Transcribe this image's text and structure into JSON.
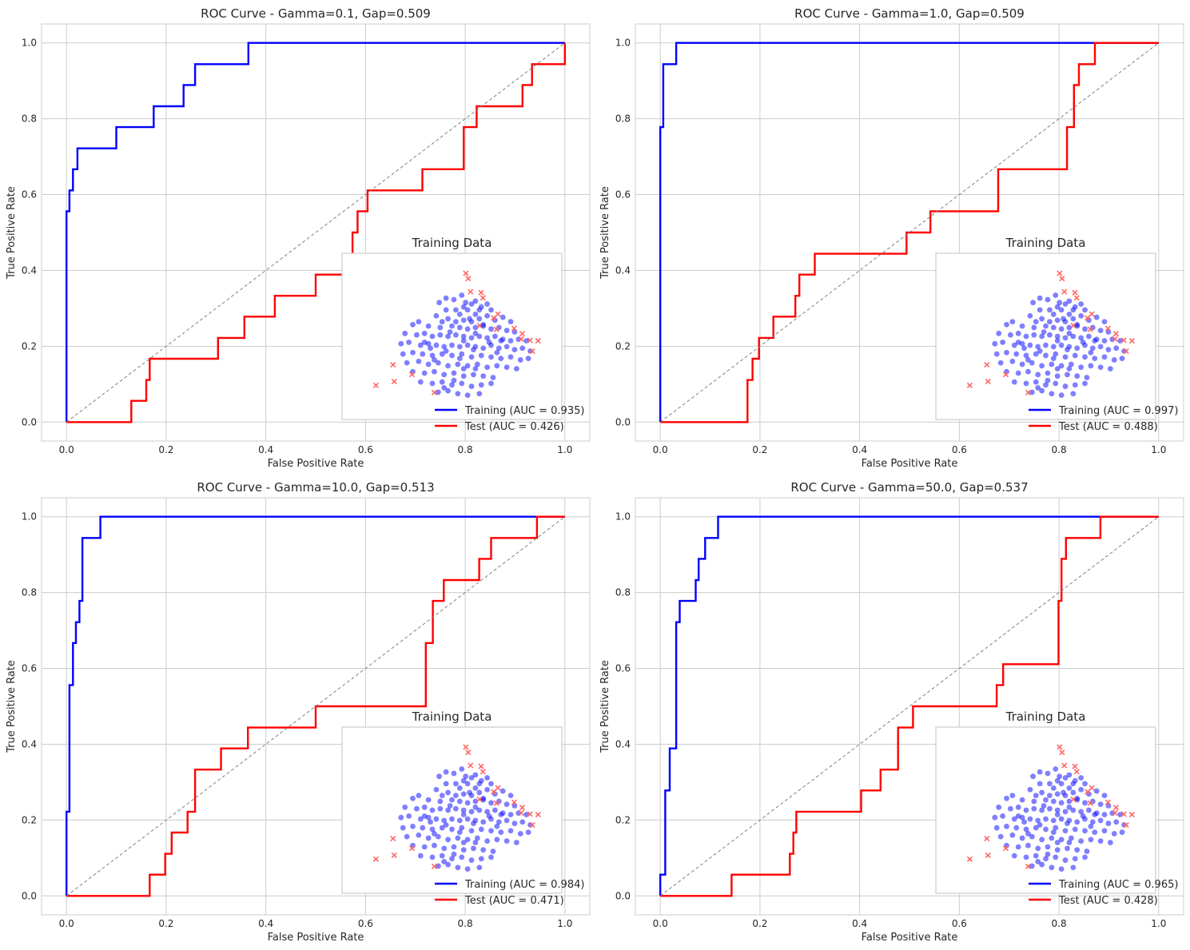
{
  "colors": {
    "training": "#0000ff",
    "test": "#ff0000",
    "diagonal": "#808080",
    "grid": "#cccccc",
    "inset_normal": "#0000ff",
    "inset_outlier": "#ff6666"
  },
  "chart_data": [
    {
      "type": "line",
      "title": "ROC Curve - Gamma=0.1, Gap=0.509",
      "xlabel": "False Positive Rate",
      "ylabel": "True Positive Rate",
      "xlim": [
        -0.05,
        1.05
      ],
      "ylim": [
        -0.05,
        1.05
      ],
      "xticks": [
        "0.0",
        "0.2",
        "0.4",
        "0.6",
        "0.8",
        "1.0"
      ],
      "yticks": [
        "0.0",
        "0.2",
        "0.4",
        "0.6",
        "0.8",
        "1.0"
      ],
      "grid": true,
      "legend_position": "lower-right",
      "series": [
        {
          "name": "Training (AUC = 0.935)",
          "color": "#0000ff",
          "x": [
            0,
            0,
            0.006,
            0.006,
            0.013,
            0.013,
            0.022,
            0.022,
            0.1,
            0.1,
            0.175,
            0.175,
            0.235,
            0.235,
            0.258,
            0.258,
            0.365,
            0.365,
            1.0
          ],
          "y": [
            0,
            0.556,
            0.556,
            0.611,
            0.611,
            0.667,
            0.667,
            0.722,
            0.722,
            0.778,
            0.778,
            0.833,
            0.833,
            0.889,
            0.889,
            0.944,
            0.944,
            1.0,
            1.0
          ]
        },
        {
          "name": "Test (AUC = 0.426)",
          "color": "#ff0000",
          "x": [
            0,
            0.13,
            0.13,
            0.16,
            0.16,
            0.167,
            0.167,
            0.304,
            0.304,
            0.357,
            0.357,
            0.418,
            0.418,
            0.5,
            0.5,
            0.574,
            0.574,
            0.584,
            0.584,
            0.604,
            0.604,
            0.714,
            0.714,
            0.797,
            0.797,
            0.808,
            0.808,
            0.823,
            0.823,
            0.915,
            0.915,
            0.934,
            0.934,
            1.0,
            1.0
          ],
          "y": [
            0,
            0,
            0.056,
            0.056,
            0.111,
            0.111,
            0.167,
            0.167,
            0.222,
            0.222,
            0.278,
            0.278,
            0.333,
            0.333,
            0.389,
            0.389,
            0.5,
            0.5,
            0.556,
            0.556,
            0.611,
            0.611,
            0.667,
            0.667,
            0.778,
            0.778,
            0.778,
            0.778,
            0.833,
            0.833,
            0.889,
            0.889,
            0.944,
            0.944,
            1.0
          ]
        },
        {
          "x": [
            0,
            1
          ],
          "y": [
            0,
            1
          ],
          "color": "#808080",
          "dashed": true
        }
      ],
      "inset_title": "Training Data"
    },
    {
      "type": "line",
      "title": "ROC Curve - Gamma=1.0, Gap=0.509",
      "xlabel": "False Positive Rate",
      "ylabel": "True Positive Rate",
      "xlim": [
        -0.05,
        1.05
      ],
      "ylim": [
        -0.05,
        1.05
      ],
      "xticks": [
        "0.0",
        "0.2",
        "0.4",
        "0.6",
        "0.8",
        "1.0"
      ],
      "yticks": [
        "0.0",
        "0.2",
        "0.4",
        "0.6",
        "0.8",
        "1.0"
      ],
      "grid": true,
      "legend_position": "lower-right",
      "series": [
        {
          "name": "Training (AUC = 0.997)",
          "color": "#0000ff",
          "x": [
            0,
            0,
            0.006,
            0.006,
            0.032,
            0.032,
            1.0
          ],
          "y": [
            0,
            0.778,
            0.778,
            0.944,
            0.944,
            1.0,
            1.0
          ]
        },
        {
          "name": "Test (AUC = 0.488)",
          "color": "#ff0000",
          "x": [
            0,
            0.175,
            0.175,
            0.185,
            0.185,
            0.198,
            0.198,
            0.227,
            0.227,
            0.271,
            0.271,
            0.279,
            0.279,
            0.31,
            0.31,
            0.494,
            0.494,
            0.542,
            0.542,
            0.678,
            0.678,
            0.816,
            0.816,
            0.83,
            0.83,
            0.84,
            0.84,
            0.872,
            0.872,
            1.0
          ],
          "y": [
            0,
            0,
            0.111,
            0.111,
            0.167,
            0.167,
            0.222,
            0.222,
            0.278,
            0.278,
            0.333,
            0.333,
            0.389,
            0.389,
            0.444,
            0.444,
            0.5,
            0.5,
            0.556,
            0.556,
            0.667,
            0.667,
            0.778,
            0.778,
            0.889,
            0.889,
            0.944,
            0.944,
            1.0,
            1.0
          ]
        },
        {
          "x": [
            0,
            1
          ],
          "y": [
            0,
            1
          ],
          "color": "#808080",
          "dashed": true
        }
      ],
      "inset_title": "Training Data"
    },
    {
      "type": "line",
      "title": "ROC Curve - Gamma=10.0, Gap=0.513",
      "xlabel": "False Positive Rate",
      "ylabel": "True Positive Rate",
      "xlim": [
        -0.05,
        1.05
      ],
      "ylim": [
        -0.05,
        1.05
      ],
      "xticks": [
        "0.0",
        "0.2",
        "0.4",
        "0.6",
        "0.8",
        "1.0"
      ],
      "yticks": [
        "0.0",
        "0.2",
        "0.4",
        "0.6",
        "0.8",
        "1.0"
      ],
      "grid": true,
      "legend_position": "lower-right",
      "series": [
        {
          "name": "Training (AUC = 0.984)",
          "color": "#0000ff",
          "x": [
            0,
            0,
            0.006,
            0.006,
            0.013,
            0.013,
            0.019,
            0.019,
            0.026,
            0.026,
            0.032,
            0.032,
            0.068,
            0.068,
            1.0
          ],
          "y": [
            0,
            0.222,
            0.222,
            0.556,
            0.556,
            0.667,
            0.667,
            0.722,
            0.722,
            0.778,
            0.778,
            0.944,
            0.944,
            1.0,
            1.0
          ]
        },
        {
          "name": "Test (AUC = 0.471)",
          "color": "#ff0000",
          "x": [
            0,
            0.167,
            0.167,
            0.198,
            0.198,
            0.211,
            0.211,
            0.243,
            0.243,
            0.258,
            0.258,
            0.31,
            0.31,
            0.364,
            0.364,
            0.5,
            0.5,
            0.721,
            0.721,
            0.735,
            0.735,
            0.757,
            0.757,
            0.828,
            0.828,
            0.852,
            0.852,
            0.944,
            0.944,
            1.0
          ],
          "y": [
            0,
            0,
            0.056,
            0.056,
            0.111,
            0.111,
            0.167,
            0.167,
            0.222,
            0.222,
            0.333,
            0.333,
            0.389,
            0.389,
            0.444,
            0.444,
            0.5,
            0.5,
            0.667,
            0.667,
            0.778,
            0.778,
            0.833,
            0.833,
            0.889,
            0.889,
            0.944,
            0.944,
            1.0,
            1.0
          ]
        },
        {
          "x": [
            0,
            1
          ],
          "y": [
            0,
            1
          ],
          "color": "#808080",
          "dashed": true
        }
      ],
      "inset_title": "Training Data"
    },
    {
      "type": "line",
      "title": "ROC Curve - Gamma=50.0, Gap=0.537",
      "xlabel": "False Positive Rate",
      "ylabel": "True Positive Rate",
      "xlim": [
        -0.05,
        1.05
      ],
      "ylim": [
        -0.05,
        1.05
      ],
      "xticks": [
        "0.0",
        "0.2",
        "0.4",
        "0.6",
        "0.8",
        "1.0"
      ],
      "yticks": [
        "0.0",
        "0.2",
        "0.4",
        "0.6",
        "0.8",
        "1.0"
      ],
      "grid": true,
      "legend_position": "lower-right",
      "series": [
        {
          "name": "Training (AUC = 0.965)",
          "color": "#0000ff",
          "x": [
            0,
            0,
            0.01,
            0.01,
            0.019,
            0.019,
            0.032,
            0.032,
            0.039,
            0.039,
            0.071,
            0.071,
            0.077,
            0.077,
            0.09,
            0.09,
            0.116,
            0.116,
            1.0
          ],
          "y": [
            0,
            0.056,
            0.056,
            0.278,
            0.278,
            0.389,
            0.389,
            0.722,
            0.722,
            0.778,
            0.778,
            0.833,
            0.833,
            0.889,
            0.889,
            0.944,
            0.944,
            1.0,
            1.0
          ]
        },
        {
          "name": "Test (AUC = 0.428)",
          "color": "#ff0000",
          "x": [
            0,
            0.143,
            0.143,
            0.26,
            0.26,
            0.267,
            0.267,
            0.273,
            0.273,
            0.403,
            0.403,
            0.442,
            0.442,
            0.477,
            0.477,
            0.507,
            0.507,
            0.675,
            0.675,
            0.688,
            0.688,
            0.799,
            0.799,
            0.805,
            0.805,
            0.814,
            0.814,
            0.883,
            0.883,
            1.0
          ],
          "y": [
            0,
            0,
            0.056,
            0.056,
            0.111,
            0.111,
            0.167,
            0.167,
            0.222,
            0.222,
            0.278,
            0.278,
            0.333,
            0.333,
            0.444,
            0.444,
            0.5,
            0.5,
            0.556,
            0.556,
            0.611,
            0.611,
            0.778,
            0.778,
            0.889,
            0.889,
            0.944,
            0.944,
            1.0,
            1.0
          ]
        },
        {
          "x": [
            0,
            1
          ],
          "y": [
            0,
            1
          ],
          "color": "#808080",
          "dashed": true
        }
      ],
      "inset_title": "Training Data"
    }
  ],
  "inset_scatter": {
    "outliers": [
      [
        0.571,
        0.929
      ],
      [
        0.583,
        0.893
      ],
      [
        0.595,
        0.804
      ],
      [
        0.649,
        0.798
      ],
      [
        0.658,
        0.762
      ],
      [
        0.735,
        0.652
      ],
      [
        0.713,
        0.625
      ],
      [
        0.641,
        0.574
      ],
      [
        0.818,
        0.554
      ],
      [
        0.727,
        0.548
      ],
      [
        0.859,
        0.518
      ],
      [
        0.854,
        0.482
      ],
      [
        0.899,
        0.473
      ],
      [
        0.94,
        0.47
      ],
      [
        0.911,
        0.399
      ],
      [
        0.199,
        0.307
      ],
      [
        0.296,
        0.241
      ],
      [
        0.205,
        0.193
      ],
      [
        0.112,
        0.167
      ],
      [
        0.41,
        0.118
      ]
    ],
    "normal": [
      [
        0.435,
        0.73
      ],
      [
        0.51,
        0.75
      ],
      [
        0.56,
        0.7
      ],
      [
        0.6,
        0.72
      ],
      [
        0.65,
        0.7
      ],
      [
        0.47,
        0.68
      ],
      [
        0.54,
        0.65
      ],
      [
        0.58,
        0.68
      ],
      [
        0.62,
        0.65
      ],
      [
        0.7,
        0.68
      ],
      [
        0.42,
        0.64
      ],
      [
        0.48,
        0.62
      ],
      [
        0.52,
        0.6
      ],
      [
        0.56,
        0.61
      ],
      [
        0.6,
        0.6
      ],
      [
        0.64,
        0.62
      ],
      [
        0.68,
        0.64
      ],
      [
        0.72,
        0.61
      ],
      [
        0.76,
        0.63
      ],
      [
        0.8,
        0.6
      ],
      [
        0.3,
        0.58
      ],
      [
        0.38,
        0.57
      ],
      [
        0.44,
        0.56
      ],
      [
        0.5,
        0.57
      ],
      [
        0.54,
        0.56
      ],
      [
        0.58,
        0.55
      ],
      [
        0.62,
        0.56
      ],
      [
        0.66,
        0.57
      ],
      [
        0.7,
        0.55
      ],
      [
        0.74,
        0.56
      ],
      [
        0.78,
        0.54
      ],
      [
        0.82,
        0.53
      ],
      [
        0.26,
        0.52
      ],
      [
        0.32,
        0.51
      ],
      [
        0.36,
        0.52
      ],
      [
        0.4,
        0.5
      ],
      [
        0.44,
        0.51
      ],
      [
        0.48,
        0.5
      ],
      [
        0.52,
        0.51
      ],
      [
        0.56,
        0.5
      ],
      [
        0.6,
        0.49
      ],
      [
        0.64,
        0.5
      ],
      [
        0.68,
        0.49
      ],
      [
        0.72,
        0.5
      ],
      [
        0.76,
        0.48
      ],
      [
        0.8,
        0.47
      ],
      [
        0.84,
        0.48
      ],
      [
        0.88,
        0.47
      ],
      [
        0.24,
        0.45
      ],
      [
        0.28,
        0.46
      ],
      [
        0.34,
        0.44
      ],
      [
        0.38,
        0.45
      ],
      [
        0.42,
        0.44
      ],
      [
        0.46,
        0.43
      ],
      [
        0.5,
        0.44
      ],
      [
        0.54,
        0.43
      ],
      [
        0.58,
        0.44
      ],
      [
        0.62,
        0.43
      ],
      [
        0.66,
        0.42
      ],
      [
        0.7,
        0.44
      ],
      [
        0.74,
        0.42
      ],
      [
        0.78,
        0.43
      ],
      [
        0.82,
        0.41
      ],
      [
        0.86,
        0.42
      ],
      [
        0.9,
        0.4
      ],
      [
        0.25,
        0.38
      ],
      [
        0.3,
        0.39
      ],
      [
        0.35,
        0.38
      ],
      [
        0.4,
        0.37
      ],
      [
        0.45,
        0.38
      ],
      [
        0.5,
        0.37
      ],
      [
        0.55,
        0.38
      ],
      [
        0.6,
        0.36
      ],
      [
        0.65,
        0.37
      ],
      [
        0.7,
        0.36
      ],
      [
        0.75,
        0.35
      ],
      [
        0.8,
        0.36
      ],
      [
        0.85,
        0.34
      ],
      [
        0.89,
        0.35
      ],
      [
        0.27,
        0.32
      ],
      [
        0.33,
        0.33
      ],
      [
        0.38,
        0.31
      ],
      [
        0.43,
        0.32
      ],
      [
        0.48,
        0.3
      ],
      [
        0.53,
        0.31
      ],
      [
        0.58,
        0.3
      ],
      [
        0.63,
        0.31
      ],
      [
        0.68,
        0.29
      ],
      [
        0.73,
        0.3
      ],
      [
        0.78,
        0.29
      ],
      [
        0.83,
        0.28
      ],
      [
        0.3,
        0.26
      ],
      [
        0.36,
        0.25
      ],
      [
        0.41,
        0.26
      ],
      [
        0.46,
        0.24
      ],
      [
        0.51,
        0.25
      ],
      [
        0.56,
        0.23
      ],
      [
        0.61,
        0.24
      ],
      [
        0.66,
        0.23
      ],
      [
        0.71,
        0.22
      ],
      [
        0.34,
        0.19
      ],
      [
        0.4,
        0.18
      ],
      [
        0.45,
        0.19
      ],
      [
        0.5,
        0.17
      ],
      [
        0.55,
        0.18
      ],
      [
        0.6,
        0.16
      ],
      [
        0.65,
        0.17
      ],
      [
        0.7,
        0.18
      ],
      [
        0.43,
        0.12
      ],
      [
        0.48,
        0.13
      ],
      [
        0.53,
        0.11
      ],
      [
        0.58,
        0.1
      ],
      [
        0.64,
        0.11
      ],
      [
        0.47,
        0.76
      ],
      [
        0.55,
        0.78
      ],
      [
        0.62,
        0.74
      ],
      [
        0.68,
        0.72
      ],
      [
        0.52,
        0.68
      ],
      [
        0.45,
        0.6
      ],
      [
        0.59,
        0.62
      ],
      [
        0.66,
        0.58
      ],
      [
        0.62,
        0.52
      ],
      [
        0.36,
        0.46
      ],
      [
        0.56,
        0.47
      ],
      [
        0.69,
        0.46
      ],
      [
        0.47,
        0.4
      ],
      [
        0.54,
        0.35
      ],
      [
        0.39,
        0.42
      ],
      [
        0.61,
        0.41
      ],
      [
        0.73,
        0.39
      ],
      [
        0.41,
        0.34
      ],
      [
        0.56,
        0.28
      ],
      [
        0.51,
        0.2
      ],
      [
        0.46,
        0.15
      ],
      [
        0.62,
        0.28
      ],
      [
        0.75,
        0.47
      ],
      [
        0.33,
        0.6
      ],
      [
        0.57,
        0.73
      ],
      [
        0.49,
        0.53
      ],
      [
        0.64,
        0.68
      ]
    ]
  }
}
